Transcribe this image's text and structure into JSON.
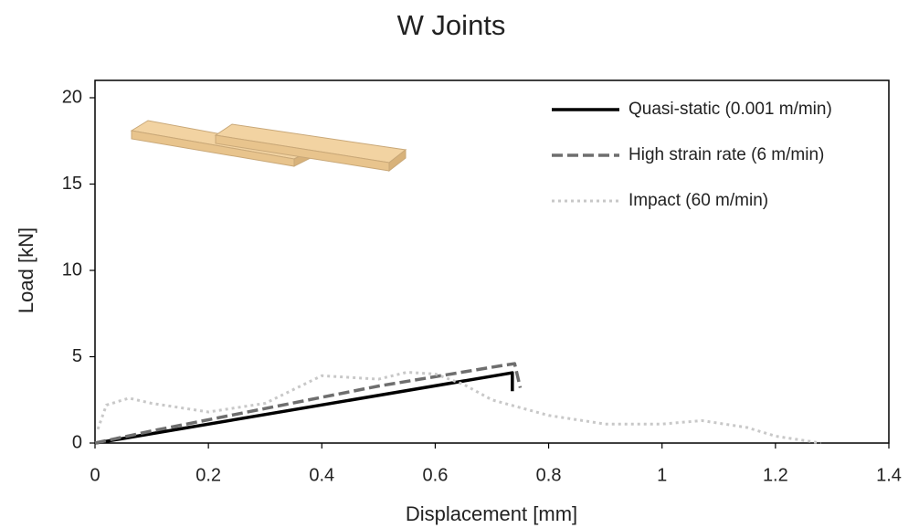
{
  "chart_data": {
    "type": "line",
    "title": "W Joints",
    "x_label": "Displacement [mm]",
    "y_label": "Load [kN]",
    "xlim": [
      0,
      1.4
    ],
    "xticks": [
      0,
      0.2,
      0.4,
      0.6,
      0.8,
      1,
      1.2,
      1.4
    ],
    "ylim": [
      0,
      20
    ],
    "yticks": [
      0,
      5,
      10,
      15,
      20
    ],
    "legend": "upper right",
    "series": [
      {
        "name": "Quasi-static (0.001 m/min)",
        "color": "#000000",
        "style": "solid",
        "x": [
          0,
          0.02,
          0.736,
          0.736
        ],
        "values": [
          0,
          0.1,
          4.07,
          3.0
        ]
      },
      {
        "name": "High strain rate (6 m/min)",
        "color": "#6e6e6e",
        "style": "dashed",
        "x": [
          0,
          0.1,
          0.5,
          0.72,
          0.74,
          0.75
        ],
        "values": [
          0,
          0.7,
          3.3,
          4.5,
          4.6,
          3.2
        ]
      },
      {
        "name": "Impact (60 m/min)",
        "color": "#c8c8c8",
        "style": "dotted",
        "x": [
          0.005,
          0.02,
          0.06,
          0.1,
          0.2,
          0.3,
          0.4,
          0.45,
          0.5,
          0.55,
          0.6,
          0.65,
          0.7,
          0.8,
          0.9,
          1.0,
          1.07,
          1.15,
          1.2,
          1.28
        ],
        "values": [
          0.8,
          2.2,
          2.6,
          2.3,
          1.8,
          2.3,
          3.9,
          3.8,
          3.7,
          4.1,
          4.0,
          3.4,
          2.5,
          1.6,
          1.1,
          1.1,
          1.3,
          0.9,
          0.4,
          0
        ]
      }
    ]
  }
}
